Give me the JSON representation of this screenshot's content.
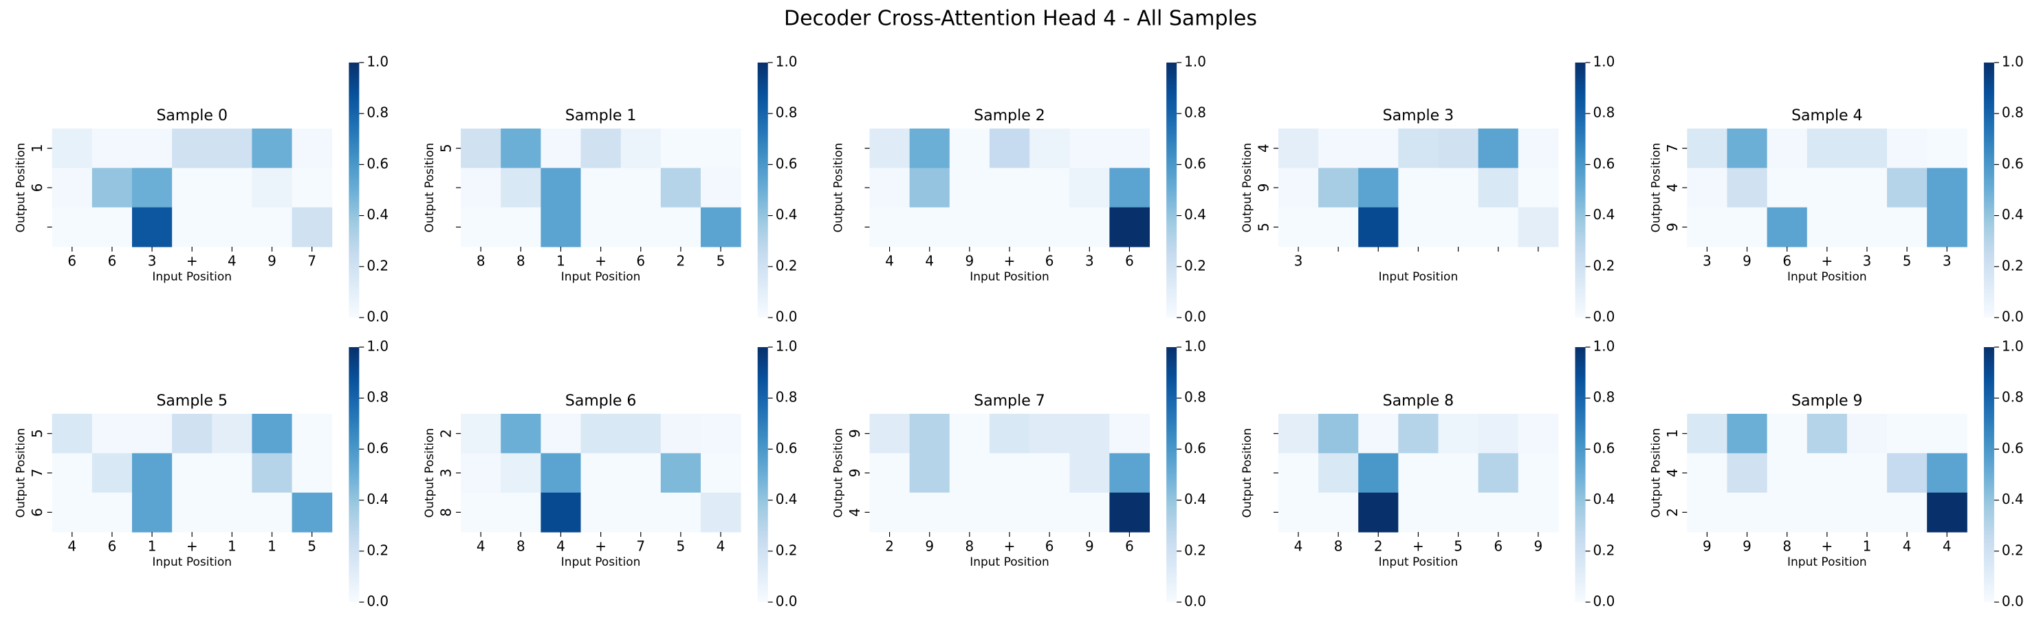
{
  "title": "Decoder Cross-Attention Head 4 - All Samples",
  "chart_data": [
    {
      "type": "heatmap",
      "title": "Sample 0",
      "xlabel": "Input Position",
      "ylabel": "Output Position",
      "colormap": "Blues",
      "x": [
        "6",
        "6",
        "3",
        "+",
        "4",
        "9",
        "7"
      ],
      "y": [
        "1",
        "6",
        null
      ],
      "values": [
        [
          0.08,
          0.02,
          0.02,
          0.2,
          0.2,
          0.5,
          0.02
        ],
        [
          0.02,
          0.4,
          0.5,
          0.01,
          0.01,
          0.06,
          0.01
        ],
        [
          0.01,
          0.01,
          0.85,
          0.01,
          0.01,
          0.01,
          0.2
        ]
      ],
      "zlim": [
        0,
        1
      ],
      "zticks": [
        {
          "value": 0,
          "label": "0.0"
        },
        0.2,
        0.4,
        0.6,
        0.8,
        {
          "value": 1,
          "label": "1.0"
        }
      ]
    },
    {
      "type": "heatmap",
      "title": "Sample 1",
      "xlabel": "Input Position",
      "ylabel": "Output Position",
      "colormap": "Blues",
      "x": [
        "8",
        "8",
        "1",
        "+",
        "6",
        "2",
        "5"
      ],
      "y": [
        "5",
        null,
        null
      ],
      "values": [
        [
          0.2,
          0.5,
          0.02,
          0.2,
          0.06,
          0.01,
          0.01
        ],
        [
          0.02,
          0.15,
          0.55,
          0.01,
          0.01,
          0.3,
          0.02
        ],
        [
          0.01,
          0.01,
          0.55,
          0.01,
          0.01,
          0.01,
          0.55
        ]
      ],
      "zlim": [
        0,
        1
      ],
      "zticks": [
        {
          "value": 0,
          "label": "0.0"
        },
        0.2,
        0.4,
        0.6,
        0.8,
        {
          "value": 1,
          "label": "1.0"
        }
      ]
    },
    {
      "type": "heatmap",
      "title": "Sample 2",
      "xlabel": "Input Position",
      "ylabel": "Output Position",
      "colormap": "Blues",
      "x": [
        "4",
        "4",
        "9",
        "+",
        "6",
        "3",
        "6"
      ],
      "y": [
        null,
        null,
        null
      ],
      "values": [
        [
          0.12,
          0.5,
          0.01,
          0.25,
          0.06,
          0.02,
          0.02
        ],
        [
          0.02,
          0.4,
          0.01,
          0.01,
          0.01,
          0.06,
          0.55
        ],
        [
          0.01,
          0.01,
          0.01,
          0.01,
          0.01,
          0.01,
          1.0
        ]
      ],
      "zlim": [
        0,
        1
      ],
      "zticks": [
        {
          "value": 0,
          "label": "0.0"
        },
        0.2,
        0.4,
        0.6,
        0.8,
        {
          "value": 1,
          "label": "1.0"
        }
      ]
    },
    {
      "type": "heatmap",
      "title": "Sample 3",
      "xlabel": "Input Position",
      "ylabel": "Output Position",
      "colormap": "Blues",
      "x": [
        "3",
        null,
        null,
        null,
        null,
        null,
        null
      ],
      "y": [
        "4",
        "9",
        "5"
      ],
      "values": [
        [
          0.1,
          0.02,
          0.02,
          0.18,
          0.2,
          0.55,
          0.02
        ],
        [
          0.02,
          0.35,
          0.55,
          0.01,
          0.01,
          0.15,
          0.01
        ],
        [
          0.01,
          0.01,
          0.9,
          0.01,
          0.01,
          0.01,
          0.1
        ]
      ],
      "zlim": [
        0,
        1
      ],
      "zticks": [
        {
          "value": 0,
          "label": "0.0"
        },
        0.2,
        0.4,
        0.6,
        0.8,
        {
          "value": 1,
          "label": "1.0"
        }
      ]
    },
    {
      "type": "heatmap",
      "title": "Sample 4",
      "xlabel": "Input Position",
      "ylabel": "Output Position",
      "colormap": "Blues",
      "x": [
        "3",
        "9",
        "6",
        "+",
        "3",
        "5",
        "3"
      ],
      "y": [
        "7",
        "4",
        "9"
      ],
      "values": [
        [
          0.15,
          0.5,
          0.02,
          0.15,
          0.15,
          0.02,
          0.01
        ],
        [
          0.02,
          0.2,
          0.01,
          0.01,
          0.01,
          0.3,
          0.55
        ],
        [
          0.01,
          0.01,
          0.55,
          0.01,
          0.01,
          0.01,
          0.55
        ]
      ],
      "zlim": [
        0,
        1
      ],
      "zticks": [
        {
          "value": 0,
          "label": "0.0"
        },
        0.2,
        0.4,
        0.6,
        0.8,
        {
          "value": 1,
          "label": "1.0"
        }
      ]
    },
    {
      "type": "heatmap",
      "title": "Sample 5",
      "xlabel": "Input Position",
      "ylabel": "Output Position",
      "colormap": "Blues",
      "x": [
        "4",
        "6",
        "1",
        "+",
        "1",
        "1",
        "5"
      ],
      "y": [
        "5",
        "7",
        "6"
      ],
      "values": [
        [
          0.15,
          0.02,
          0.02,
          0.2,
          0.1,
          0.55,
          0.01
        ],
        [
          0.01,
          0.15,
          0.55,
          0.01,
          0.01,
          0.3,
          0.01
        ],
        [
          0.01,
          0.01,
          0.55,
          0.01,
          0.01,
          0.01,
          0.55
        ]
      ],
      "zlim": [
        0,
        1
      ],
      "zticks": [
        {
          "value": 0,
          "label": "0.0"
        },
        0.2,
        0.4,
        0.6,
        0.8,
        {
          "value": 1,
          "label": "1.0"
        }
      ]
    },
    {
      "type": "heatmap",
      "title": "Sample 6",
      "xlabel": "Input Position",
      "ylabel": "Output Position",
      "colormap": "Blues",
      "x": [
        "4",
        "8",
        "4",
        "+",
        "7",
        "5",
        "4"
      ],
      "y": [
        "2",
        "3",
        "8"
      ],
      "values": [
        [
          0.06,
          0.5,
          0.02,
          0.15,
          0.15,
          0.03,
          0.02
        ],
        [
          0.02,
          0.08,
          0.55,
          0.01,
          0.01,
          0.45,
          0.01
        ],
        [
          0.01,
          0.01,
          0.9,
          0.01,
          0.01,
          0.01,
          0.12
        ]
      ],
      "zlim": [
        0,
        1
      ],
      "zticks": [
        {
          "value": 0,
          "label": "0.0"
        },
        0.2,
        0.4,
        0.6,
        0.8,
        {
          "value": 1,
          "label": "1.0"
        }
      ]
    },
    {
      "type": "heatmap",
      "title": "Sample 7",
      "xlabel": "Input Position",
      "ylabel": "Output Position",
      "colormap": "Blues",
      "x": [
        "2",
        "9",
        "8",
        "+",
        "6",
        "9",
        "6"
      ],
      "y": [
        "9",
        "9",
        "4"
      ],
      "values": [
        [
          0.12,
          0.3,
          0.01,
          0.15,
          0.12,
          0.12,
          0.02
        ],
        [
          0.01,
          0.3,
          0.01,
          0.01,
          0.01,
          0.12,
          0.55
        ],
        [
          0.01,
          0.01,
          0.01,
          0.01,
          0.01,
          0.01,
          1.0
        ]
      ],
      "zlim": [
        0,
        1
      ],
      "zticks": [
        {
          "value": 0,
          "label": "0.0"
        },
        0.2,
        0.4,
        0.6,
        0.8,
        {
          "value": 1,
          "label": "1.0"
        }
      ]
    },
    {
      "type": "heatmap",
      "title": "Sample 8",
      "xlabel": "Input Position",
      "ylabel": "Output Position",
      "colormap": "Blues",
      "x": [
        "4",
        "8",
        "2",
        "+",
        "5",
        "6",
        "9"
      ],
      "y": [
        null,
        null,
        null
      ],
      "values": [
        [
          0.1,
          0.4,
          0.02,
          0.3,
          0.05,
          0.07,
          0.02
        ],
        [
          0.01,
          0.15,
          0.6,
          0.01,
          0.01,
          0.3,
          0.01
        ],
        [
          0.01,
          0.01,
          1.0,
          0.01,
          0.01,
          0.01,
          0.01
        ]
      ],
      "zlim": [
        0,
        1
      ],
      "zticks": [
        {
          "value": 0,
          "label": "0.0"
        },
        0.2,
        0.4,
        0.6,
        0.8,
        {
          "value": 1,
          "label": "1.0"
        }
      ]
    },
    {
      "type": "heatmap",
      "title": "Sample 9",
      "xlabel": "Input Position",
      "ylabel": "Output Position",
      "colormap": "Blues",
      "x": [
        "9",
        "9",
        "8",
        "+",
        "1",
        "4",
        "4"
      ],
      "y": [
        "1",
        "4",
        "2"
      ],
      "values": [
        [
          0.15,
          0.5,
          0.01,
          0.3,
          0.03,
          0.01,
          0.01
        ],
        [
          0.01,
          0.2,
          0.01,
          0.01,
          0.01,
          0.25,
          0.55
        ],
        [
          0.01,
          0.01,
          0.01,
          0.01,
          0.01,
          0.01,
          1.0
        ]
      ],
      "zlim": [
        0,
        1
      ],
      "zticks": [
        {
          "value": 0,
          "label": "0.0"
        },
        0.2,
        0.4,
        0.6,
        0.8,
        {
          "value": 1,
          "label": "1.0"
        }
      ]
    }
  ]
}
